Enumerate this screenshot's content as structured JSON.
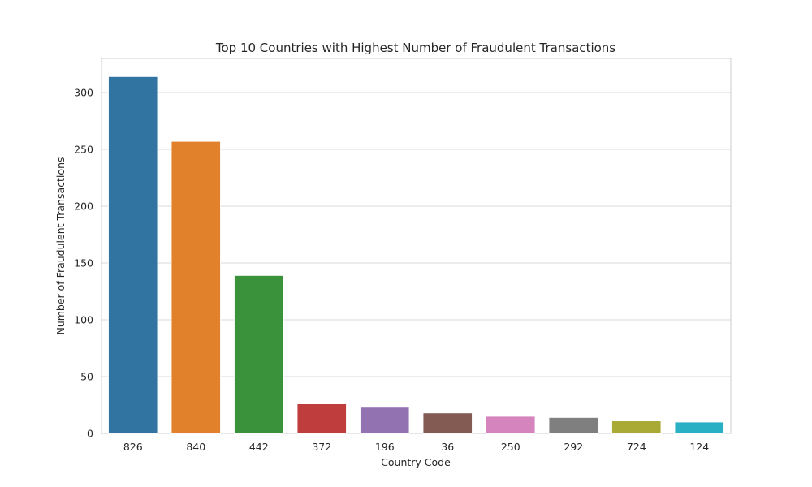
{
  "chart_data": {
    "type": "bar",
    "title": "Top 10 Countries with Highest Number of Fraudulent Transactions",
    "xlabel": "Country Code",
    "ylabel": "Number of Fraudulent Transactions",
    "categories": [
      "826",
      "840",
      "442",
      "372",
      "196",
      "36",
      "250",
      "292",
      "724",
      "124"
    ],
    "values": [
      314,
      257,
      139,
      26,
      23,
      18,
      15,
      14,
      11,
      10
    ],
    "colors": [
      "#3274a1",
      "#e1812c",
      "#3a923a",
      "#c03d3e",
      "#9372b2",
      "#845b53",
      "#d684bd",
      "#7f7f7f",
      "#a9aa35",
      "#2ab0c5"
    ],
    "ylim": [
      0,
      330
    ],
    "yticks": [
      0,
      50,
      100,
      150,
      200,
      250,
      300
    ],
    "grid": true,
    "legend": "none"
  }
}
